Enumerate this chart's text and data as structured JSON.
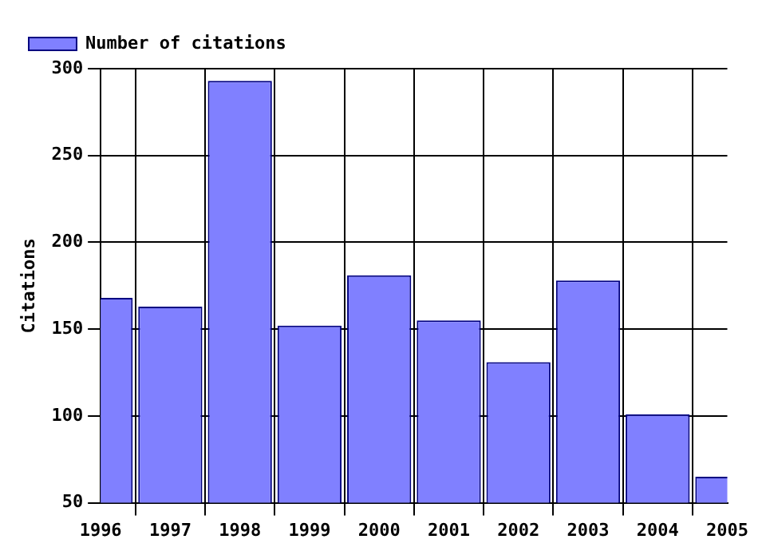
{
  "chart_data": {
    "type": "bar",
    "ylabel": "Citations",
    "x": [
      1996,
      1997,
      1998,
      1999,
      2000,
      2001,
      2002,
      2003,
      2004,
      2005
    ],
    "series": [
      {
        "name": "Number of citations",
        "color": "#8080ff",
        "values": [
          168,
          163,
          293,
          152,
          181,
          155,
          131,
          178,
          101,
          65
        ]
      }
    ],
    "xlim": [
      1996,
      2005
    ],
    "xticks": [
      1996,
      1997,
      1998,
      1999,
      2000,
      2001,
      2002,
      2003,
      2004,
      2005
    ],
    "ylim": [
      50,
      300
    ],
    "yticks": [
      50,
      100,
      150,
      200,
      250,
      300
    ],
    "grid": true,
    "legend": "top left"
  }
}
